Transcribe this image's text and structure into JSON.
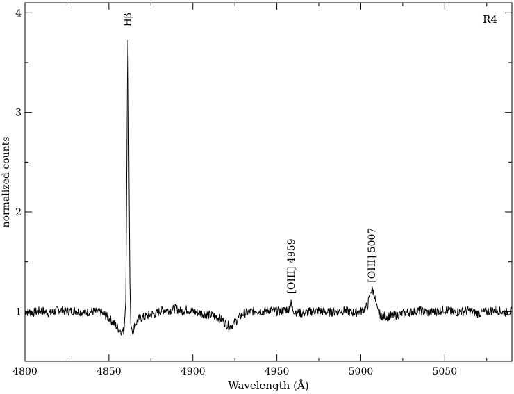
{
  "chart_data": {
    "type": "line",
    "title": "",
    "corner_label": "R4",
    "xlabel": "Wavelength  (Å)",
    "ylabel": "normalized counts",
    "xlim": [
      4800,
      5090
    ],
    "ylim": [
      0.5,
      4.1
    ],
    "xticks": [
      4800,
      4850,
      4900,
      4950,
      5000,
      5050
    ],
    "yticks": [
      1,
      2,
      3,
      4
    ],
    "xtick_labels": [
      "4800",
      "4850",
      "4900",
      "4950",
      "5000",
      "5050"
    ],
    "ytick_labels": [
      "1",
      "2",
      "3",
      "4"
    ],
    "grid": false,
    "line_color": "#000000",
    "annotations": [
      {
        "text": "Hβ",
        "x": 4861.5,
        "y": 3.86,
        "rotation": -90
      },
      {
        "text": "[OIII] 4959",
        "x": 4958.9,
        "y": 1.18,
        "rotation": -90
      },
      {
        "text": "[OIII] 5007",
        "x": 5006.8,
        "y": 1.29,
        "rotation": -90
      }
    ],
    "series": [
      {
        "x": [
          4800,
          4805,
          4810,
          4815,
          4820,
          4825,
          4830,
          4835,
          4840,
          4845,
          4848,
          4850,
          4852,
          4854,
          4856,
          4858,
          4859,
          4860,
          4860.5,
          4861,
          4861.3,
          4861.6,
          4862,
          4862.5,
          4863,
          4864,
          4865,
          4866,
          4868,
          4870,
          4872,
          4875,
          4878,
          4880,
          4883,
          4886,
          4890,
          4893,
          4896,
          4900,
          4903,
          4906,
          4909,
          4912,
          4915,
          4918,
          4920,
          4922,
          4924,
          4926,
          4928,
          4930,
          4934,
          4938,
          4942,
          4946,
          4950,
          4954,
          4957,
          4958.5,
          4959,
          4959.5,
          4961,
          4965,
          4970,
          4975,
          4980,
          4985,
          4990,
          4995,
          5000,
          5002,
          5004,
          5005,
          5006,
          5007,
          5008,
          5009,
          5010,
          5012,
          5015,
          5020,
          5025,
          5030,
          5035,
          5040,
          5045,
          5050,
          5055,
          5060,
          5065,
          5070,
          5075,
          5080,
          5085,
          5090
        ],
        "values": [
          1.0,
          0.99,
          1.01,
          0.98,
          1.02,
          1.0,
          1.01,
          0.99,
          1.0,
          0.99,
          0.96,
          0.93,
          0.9,
          0.86,
          0.82,
          0.8,
          0.81,
          1.1,
          2.1,
          3.3,
          3.81,
          3.4,
          2.3,
          1.3,
          0.87,
          0.8,
          0.84,
          0.88,
          0.93,
          0.94,
          0.95,
          0.97,
          0.98,
          1.0,
          1.02,
          1.01,
          1.03,
          1.0,
          1.02,
          1.0,
          0.99,
          0.98,
          0.97,
          0.96,
          0.94,
          0.91,
          0.87,
          0.85,
          0.87,
          0.91,
          0.95,
          0.98,
          1.0,
          1.01,
          1.0,
          1.02,
          1.0,
          1.01,
          1.03,
          1.08,
          1.04,
          1.02,
          1.0,
          0.98,
          1.0,
          1.01,
          0.99,
          1.0,
          1.01,
          0.99,
          1.0,
          1.02,
          1.06,
          1.13,
          1.21,
          1.22,
          1.17,
          1.08,
          1.0,
          0.96,
          0.95,
          0.96,
          0.98,
          1.0,
          1.01,
          0.99,
          1.0,
          1.02,
          0.99,
          1.0,
          1.01,
          0.98,
          1.0,
          1.02,
          0.99,
          1.0
        ]
      }
    ]
  }
}
